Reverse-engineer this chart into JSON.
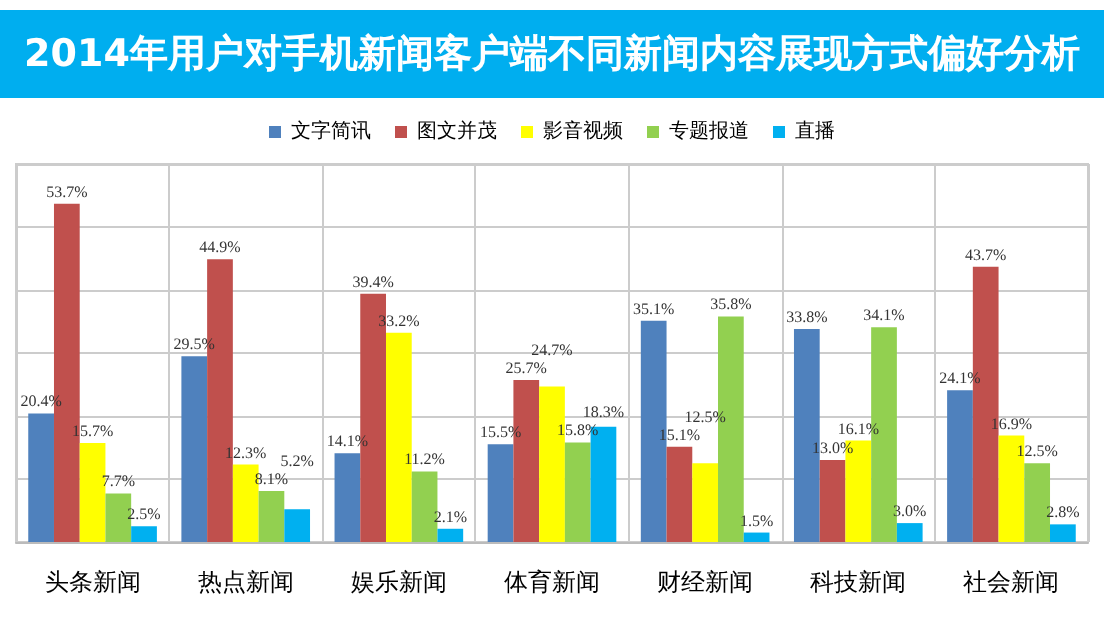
{
  "chart_data": {
    "type": "bar",
    "title": "2014年用户对手机新闻客户端不同新闻内容展现方式偏好分析",
    "categories": [
      "头条新闻",
      "热点新闻",
      "娱乐新闻",
      "体育新闻",
      "财经新闻",
      "科技新闻",
      "社会新闻"
    ],
    "series": [
      {
        "name": "文字简讯",
        "color": "#4f81bd",
        "values": [
          20.4,
          29.5,
          14.1,
          15.5,
          35.1,
          33.8,
          24.1
        ],
        "value_labels": [
          "20.4%",
          "29.5%",
          "14.1%",
          "15.5%",
          "35.1%",
          "33.8%",
          "24.1%"
        ]
      },
      {
        "name": "图文并茂",
        "color": "#c0504d",
        "values": [
          53.7,
          44.9,
          39.4,
          25.7,
          15.1,
          13.0,
          43.7
        ],
        "value_labels": [
          "53.7%",
          "44.9%",
          "39.4%",
          "25.7%",
          "15.1%",
          "13.0%",
          "43.7%"
        ]
      },
      {
        "name": "影音视频",
        "color": "#ffff00",
        "values": [
          15.7,
          12.3,
          33.2,
          24.7,
          12.5,
          16.1,
          16.9
        ],
        "value_labels": [
          "15.7%",
          "12.3%",
          "33.2%",
          "24.7%",
          "12.5%",
          "16.1%",
          "16.9%"
        ]
      },
      {
        "name": "专题报道",
        "color": "#92d050",
        "values": [
          7.7,
          8.1,
          11.2,
          15.8,
          35.8,
          34.1,
          12.5
        ],
        "value_labels": [
          "7.7%",
          "8.1%",
          "11.2%",
          "15.8%",
          "35.8%",
          "34.1%",
          "12.5%"
        ]
      },
      {
        "name": "直播",
        "color": "#00b0f0",
        "values": [
          2.5,
          5.2,
          2.1,
          18.3,
          1.5,
          3.0,
          2.8
        ],
        "value_labels": [
          "2.5%",
          "5.2%",
          "2.1%",
          "18.3%",
          "1.5%",
          "3.0%",
          "2.8%"
        ]
      }
    ],
    "tick_labels": "x",
    "grid": true,
    "legend": "top"
  }
}
